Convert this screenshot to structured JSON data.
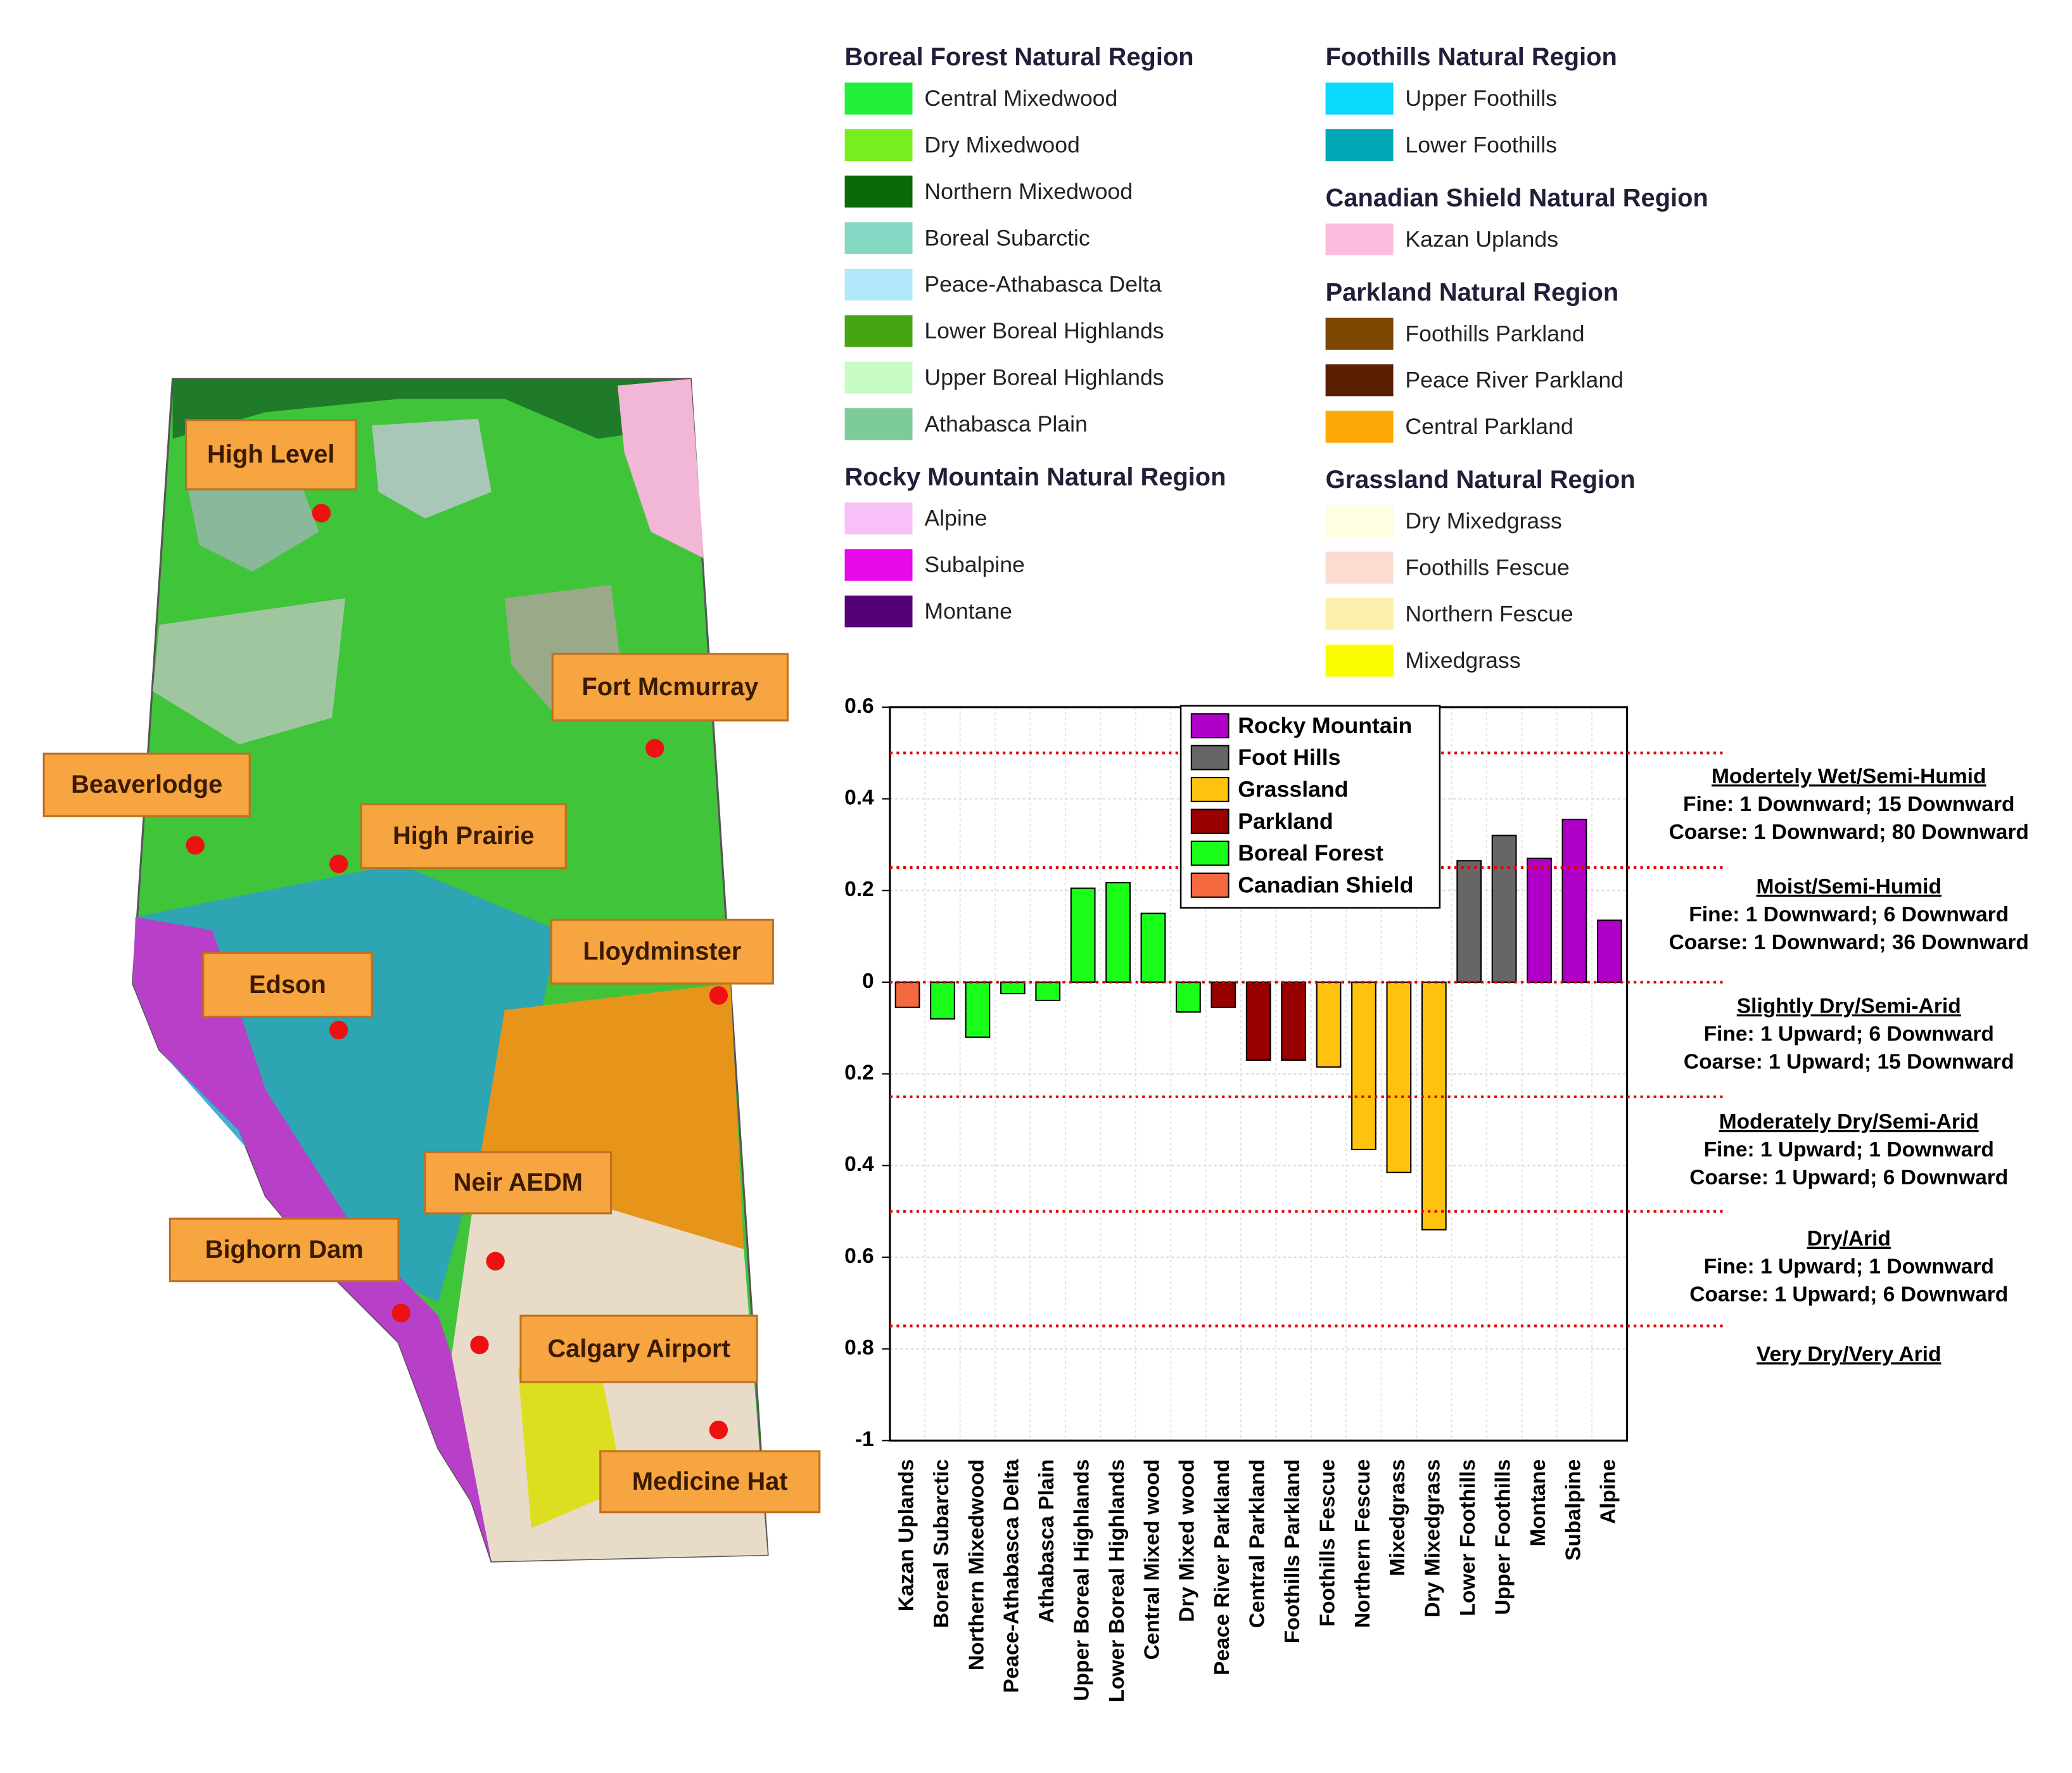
{
  "map": {
    "cities": [
      "High Level",
      "Fort Mcmurray",
      "Beaverlodge",
      "High Prairie",
      "Lloydminster",
      "Edson",
      "Neir AEDM",
      "Bighorn Dam",
      "Calgary Airport",
      "Medicine Hat"
    ]
  },
  "legend": {
    "groups": [
      {
        "title": "Boreal Forest Natural Region",
        "items": [
          {
            "name": "Central Mixedwood",
            "color": "#22f03a"
          },
          {
            "name": "Dry Mixedwood",
            "color": "#78ee1e"
          },
          {
            "name": "Northern Mixedwood",
            "color": "#0a6a0a"
          },
          {
            "name": "Boreal Subarctic",
            "color": "#84d8c4"
          },
          {
            "name": "Peace-Athabasca Delta",
            "color": "#b0e8fa"
          },
          {
            "name": "Lower Boreal Highlands",
            "color": "#46a612"
          },
          {
            "name": "Upper Boreal Highlands",
            "color": "#c8fcc4"
          },
          {
            "name": "Athabasca Plain",
            "color": "#7ccc98"
          }
        ]
      },
      {
        "title": "Rocky Mountain Natural Region",
        "items": [
          {
            "name": "Alpine",
            "color": "#f8c0f8"
          },
          {
            "name": "Subalpine",
            "color": "#e80ae8"
          },
          {
            "name": "Montane",
            "color": "#560078"
          }
        ]
      },
      {
        "title": "Foothills Natural Region",
        "items": [
          {
            "name": "Upper Foothills",
            "color": "#0ad8fc"
          },
          {
            "name": "Lower Foothills",
            "color": "#00a8b6"
          }
        ]
      },
      {
        "title": "Canadian Shield Natural Region",
        "items": [
          {
            "name": "Kazan Uplands",
            "color": "#fcbce0"
          }
        ]
      },
      {
        "title": "Parkland Natural Region",
        "items": [
          {
            "name": "Foothills Parkland",
            "color": "#7a4600"
          },
          {
            "name": "Peace River Parkland",
            "color": "#5a2000"
          },
          {
            "name": "Central Parkland",
            "color": "#fca808"
          }
        ]
      },
      {
        "title": "Grassland Natural Region",
        "items": [
          {
            "name": "Dry Mixedgrass",
            "color": "#fefee0"
          },
          {
            "name": "Foothills Fescue",
            "color": "#fcdcd0"
          },
          {
            "name": "Northern Fescue",
            "color": "#fef0ac"
          },
          {
            "name": "Mixedgrass",
            "color": "#fcfc00"
          }
        ]
      }
    ]
  },
  "chart_data": {
    "type": "bar",
    "categories": [
      "Kazan Uplands",
      "Boreal Subarctic",
      "Northern Mixedwood",
      "Peace-Athabasca Delta",
      "Athabasca Plain",
      "Upper Boreal Highlands",
      "Lower Boreal Highlands",
      "Central Mixed wood",
      "Dry Mixed wood",
      "Peace River Parkland",
      "Central Parkland",
      "Foothills Parkland",
      "Foothills Fescue",
      "Northern Fescue",
      "Mixedgrass",
      "Dry Mixedgrass",
      "Lower Foothills",
      "Upper Foothills",
      "Montane",
      "Subalpine",
      "Alpine"
    ],
    "series": [
      {
        "name": "Rocky Mountain",
        "color": "#b000c8",
        "values": [
          null,
          null,
          null,
          null,
          null,
          null,
          null,
          null,
          null,
          null,
          null,
          null,
          null,
          null,
          null,
          null,
          null,
          null,
          0.27,
          0.355,
          0.135
        ]
      },
      {
        "name": "Foot Hills",
        "color": "#666666",
        "values": [
          null,
          null,
          null,
          null,
          null,
          null,
          null,
          null,
          null,
          null,
          null,
          null,
          null,
          null,
          null,
          null,
          0.265,
          0.32,
          null,
          null,
          null
        ]
      },
      {
        "name": "Grassland",
        "color": "#ffc20e",
        "values": [
          null,
          null,
          null,
          null,
          null,
          null,
          null,
          null,
          null,
          null,
          null,
          null,
          -0.185,
          -0.365,
          -0.415,
          -0.54,
          null,
          null,
          null,
          null,
          null
        ]
      },
      {
        "name": "Parkland",
        "color": "#990000",
        "values": [
          null,
          null,
          null,
          null,
          null,
          null,
          null,
          null,
          null,
          -0.055,
          -0.17,
          -0.17,
          null,
          null,
          null,
          null,
          null,
          null,
          null,
          null,
          null
        ]
      },
      {
        "name": "Boreal Forest",
        "color": "#1aff1a",
        "values": [
          null,
          -0.08,
          -0.12,
          -0.025,
          -0.04,
          0.205,
          0.217,
          0.15,
          -0.065,
          null,
          null,
          null,
          null,
          null,
          null,
          null,
          null,
          null,
          null,
          null,
          null
        ]
      },
      {
        "name": "Canadian Shield",
        "color": "#f4693f",
        "values": [
          -0.055,
          null,
          null,
          null,
          null,
          null,
          null,
          null,
          null,
          null,
          null,
          null,
          null,
          null,
          null,
          null,
          null,
          null,
          null,
          null,
          null
        ]
      }
    ],
    "ylim": [
      -1,
      0.6
    ],
    "yticks": [
      0.6,
      0.4,
      0.2,
      0,
      {
        "value": -0.2,
        "label": "0.2"
      },
      {
        "value": -0.4,
        "label": "0.4"
      },
      {
        "value": -0.6,
        "label": "0.6"
      },
      {
        "value": -0.8,
        "label": "0.8"
      },
      -1
    ],
    "grid": true,
    "legend": "upper right",
    "thresholds": [
      0.5,
      0.25,
      0,
      -0.25,
      -0.5,
      -0.75
    ],
    "threshold_color": "#e00000",
    "annotations": [
      {
        "title": "Modertely Wet/Semi-Humid",
        "lines": [
          "Fine: 1 Downward; 15 Downward",
          "Coarse: 1 Downward; 80 Downward"
        ]
      },
      {
        "title": "Moist/Semi-Humid",
        "lines": [
          "Fine: 1 Downward; 6 Downward",
          "Coarse: 1 Downward; 36 Downward"
        ]
      },
      {
        "title": "Slightly Dry/Semi-Arid",
        "lines": [
          "Fine: 1 Upward; 6 Downward",
          "Coarse: 1 Upward; 15 Downward"
        ]
      },
      {
        "title": "Moderately Dry/Semi-Arid",
        "lines": [
          "Fine: 1 Upward; 1 Downward",
          "Coarse: 1 Upward; 6 Downward"
        ]
      },
      {
        "title": "Dry/Arid",
        "lines": [
          "Fine: 1 Upward; 1 Downward",
          "Coarse: 1 Upward; 6 Downward"
        ]
      },
      {
        "title": "Very Dry/Very Arid",
        "lines": []
      }
    ]
  }
}
